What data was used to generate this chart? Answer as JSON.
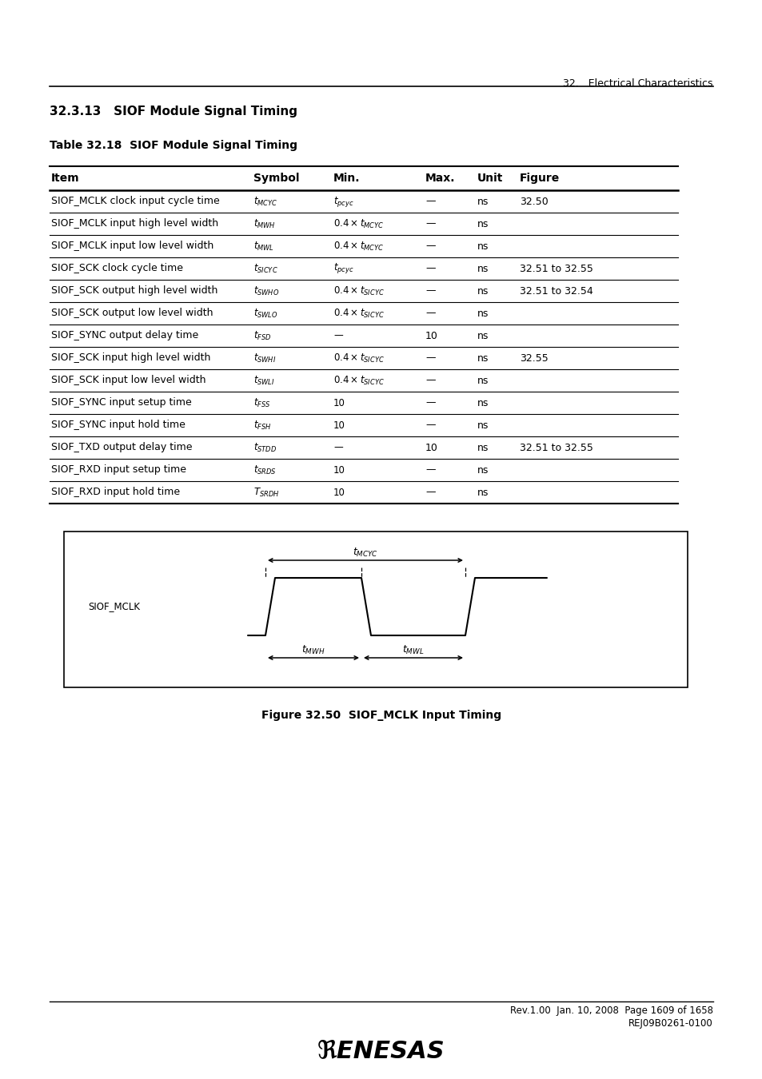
{
  "page_header_right": "32.   Electrical Characteristics",
  "section_title": "32.3.13   SIOF Module Signal Timing",
  "table_title": "Table 32.18  SIOF Module Signal Timing",
  "table_headers": [
    "Item",
    "Symbol",
    "Min.",
    "Max.",
    "Unit",
    "Figure"
  ],
  "table_rows": [
    [
      "SIOF_MCLK clock input cycle time",
      "$t_{MCYC}$",
      "$t_{pcyc}$",
      "—",
      "ns",
      "32.50"
    ],
    [
      "SIOF_MCLK input high level width",
      "$t_{MWH}$",
      "$0.4 \\times t_{MCYC}$",
      "—",
      "ns",
      ""
    ],
    [
      "SIOF_MCLK input low level width",
      "$t_{MWL}$",
      "$0.4 \\times t_{MCYC}$",
      "—",
      "ns",
      ""
    ],
    [
      "SIOF_SCK clock cycle time",
      "$t_{SICYC}$",
      "$t_{pcyc}$",
      "—",
      "ns",
      "32.51 to 32.55"
    ],
    [
      "SIOF_SCK output high level width",
      "$t_{SWHO}$",
      "$0.4 \\times t_{SICYC}$",
      "—",
      "ns",
      "32.51 to 32.54"
    ],
    [
      "SIOF_SCK output low level width",
      "$t_{SWLO}$",
      "$0.4 \\times t_{SICYC}$",
      "—",
      "ns",
      ""
    ],
    [
      "SIOF_SYNC output delay time",
      "$t_{FSD}$",
      "—",
      "10",
      "ns",
      ""
    ],
    [
      "SIOF_SCK input high level width",
      "$t_{SWHI}$",
      "$0.4 \\times t_{SICYC}$",
      "—",
      "ns",
      "32.55"
    ],
    [
      "SIOF_SCK input low level width",
      "$t_{SWLI}$",
      "$0.4 \\times t_{SICYC}$",
      "—",
      "ns",
      ""
    ],
    [
      "SIOF_SYNC input setup time",
      "$t_{FSS}$",
      "10",
      "—",
      "ns",
      ""
    ],
    [
      "SIOF_SYNC input hold time",
      "$t_{FSH}$",
      "10",
      "—",
      "ns",
      ""
    ],
    [
      "SIOF_TXD output delay time",
      "$t_{STDD}$",
      "—",
      "10",
      "ns",
      "32.51 to 32.55"
    ],
    [
      "SIOF_RXD input setup time",
      "$t_{SRDS}$",
      "10",
      "—",
      "ns",
      ""
    ],
    [
      "SIOF_RXD input hold time",
      "$T_{SRDH}$",
      "10",
      "—",
      "ns",
      ""
    ]
  ],
  "figure_caption": "Figure 32.50  SIOF_MCLK Input Timing",
  "footer_line1": "Rev.1.00  Jan. 10, 2008  Page 1609 of 1658",
  "footer_line2": "REJ09B0261-0100",
  "bg_color": "#ffffff",
  "text_color": "#000000"
}
